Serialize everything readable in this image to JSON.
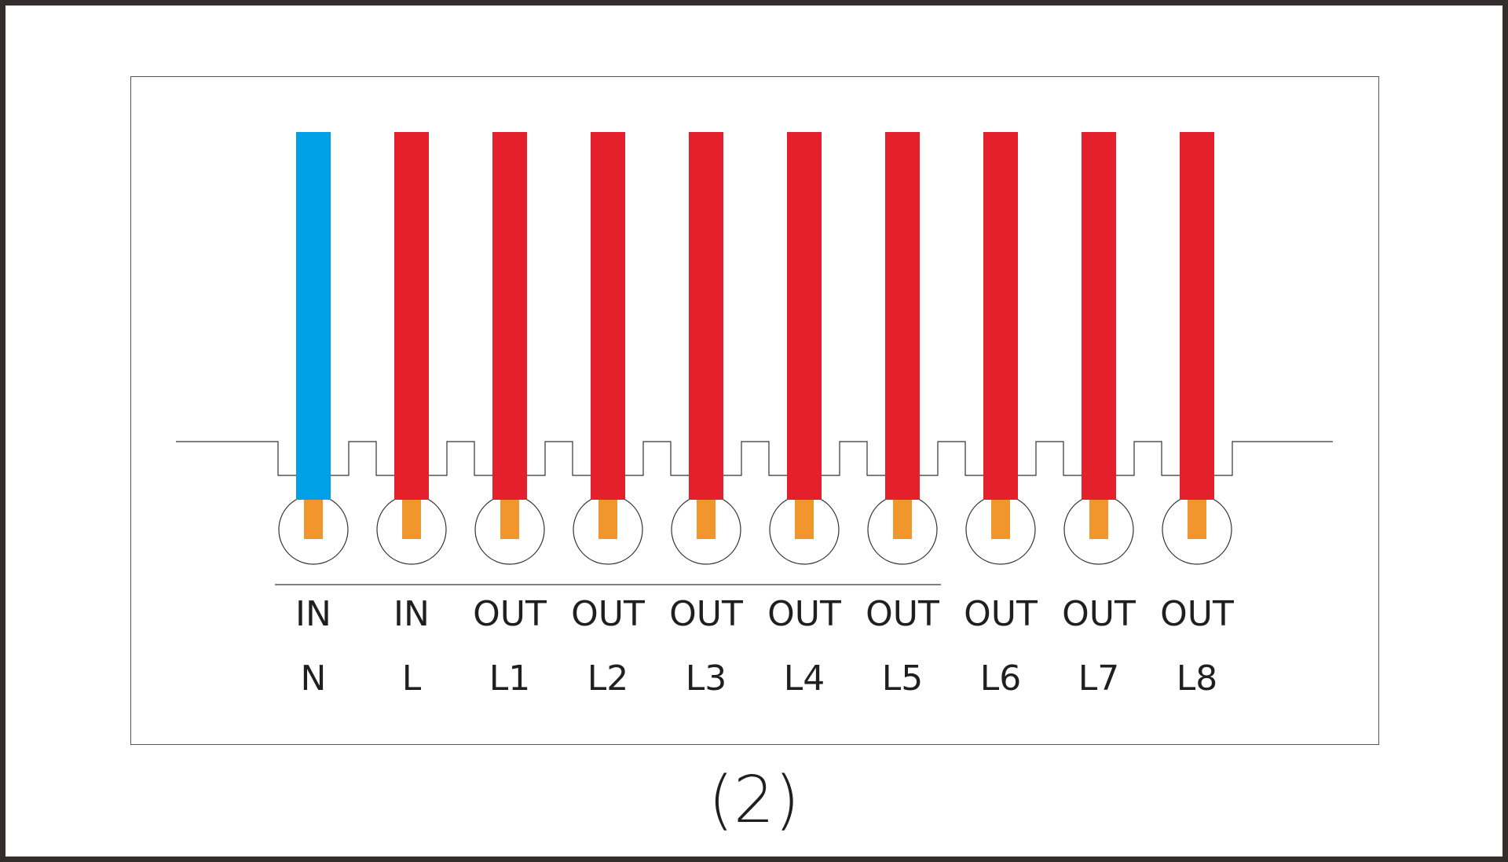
{
  "diagram": {
    "caption": "(2)",
    "colors": {
      "neutral_wire": "#00a0e6",
      "live_wire": "#e4202c",
      "conductor": "#f0962c",
      "outline": "#333333",
      "text": "#1f1f1f"
    },
    "terminals": [
      {
        "id": "N",
        "role": "IN",
        "name": "N",
        "wire": "neutral"
      },
      {
        "id": "L",
        "role": "IN",
        "name": "L",
        "wire": "live"
      },
      {
        "id": "L1",
        "role": "OUT",
        "name": "L1",
        "wire": "live"
      },
      {
        "id": "L2",
        "role": "OUT",
        "name": "L2",
        "wire": "live"
      },
      {
        "id": "L3",
        "role": "OUT",
        "name": "L3",
        "wire": "live"
      },
      {
        "id": "L4",
        "role": "OUT",
        "name": "L4",
        "wire": "live"
      },
      {
        "id": "L5",
        "role": "OUT",
        "name": "L5",
        "wire": "live"
      },
      {
        "id": "L6",
        "role": "OUT",
        "name": "L6",
        "wire": "live"
      },
      {
        "id": "L7",
        "role": "OUT",
        "name": "L7",
        "wire": "live"
      },
      {
        "id": "L8",
        "role": "OUT",
        "name": "L8",
        "wire": "live"
      }
    ]
  }
}
